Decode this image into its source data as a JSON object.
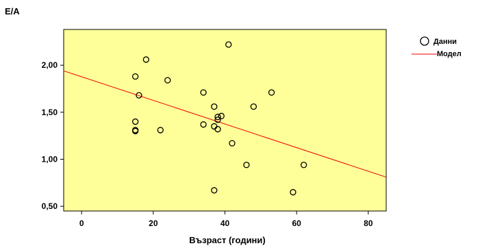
{
  "chart_data": {
    "type": "scatter",
    "title": "",
    "xlabel": "Възраст (години)",
    "ylabel": "E/A",
    "xlim": [
      -5,
      85
    ],
    "ylim": [
      0.45,
      2.38
    ],
    "x_ticks": [
      0,
      20,
      40,
      60,
      80
    ],
    "x_tick_labels": [
      "0",
      "20",
      "40",
      "60",
      "80"
    ],
    "y_ticks": [
      0.5,
      1.0,
      1.5,
      2.0
    ],
    "y_tick_labels": [
      "0,50",
      "1,00",
      "1,50",
      "2,00"
    ],
    "grid": false,
    "legend_position": "top-right",
    "background_color": "#ffff99",
    "series": [
      {
        "name": "Данни",
        "kind": "points",
        "color": "#000000",
        "x": [
          15,
          15,
          15,
          15,
          16,
          18,
          22,
          24,
          34,
          34,
          37,
          37,
          37,
          38,
          38,
          38,
          39,
          41,
          42,
          46,
          48,
          53,
          59,
          62
        ],
        "y": [
          1.88,
          1.4,
          1.31,
          1.3,
          1.68,
          2.06,
          1.31,
          1.84,
          1.71,
          1.37,
          1.56,
          1.35,
          0.67,
          1.45,
          1.42,
          1.32,
          1.46,
          2.22,
          1.17,
          0.94,
          1.56,
          1.71,
          0.65,
          0.94
        ]
      },
      {
        "name": "Модел",
        "kind": "line",
        "color": "#ee0000",
        "x": [
          -5,
          85
        ],
        "y": [
          1.94,
          0.81
        ]
      }
    ]
  }
}
